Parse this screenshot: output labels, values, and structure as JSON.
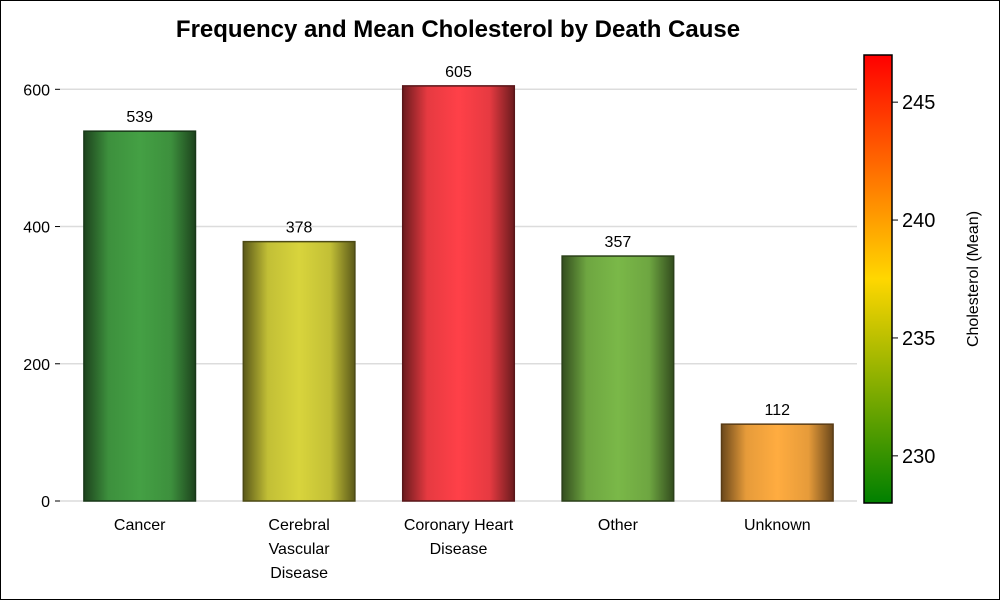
{
  "chart_data": {
    "type": "bar",
    "title": "Frequency and Mean Cholesterol by Death Cause",
    "categories": [
      "Cancer",
      "Cerebral Vascular Disease",
      "Coronary Heart Disease",
      "Other",
      "Unknown"
    ],
    "category_lines": [
      [
        "Cancer"
      ],
      [
        "Cerebral",
        "Vascular",
        "Disease"
      ],
      [
        "Coronary Heart",
        "Disease"
      ],
      [
        "Other"
      ],
      [
        "Unknown"
      ]
    ],
    "values": [
      539,
      378,
      605,
      357,
      112
    ],
    "data_labels": [
      "539",
      "378",
      "605",
      "357",
      "112"
    ],
    "bar_colors": [
      "#44a044",
      "#d8d43c",
      "#ff4048",
      "#7ab848",
      "#ffac40"
    ],
    "ylim": [
      0,
      650
    ],
    "yticks": [
      0,
      200,
      400,
      600
    ],
    "grid": true,
    "colorbar": {
      "label": "Cholesterol (Mean)",
      "range": [
        228,
        247
      ],
      "ticks": [
        230,
        235,
        240,
        245
      ],
      "colors": [
        "#008000",
        "#ffd700",
        "#ff0000"
      ]
    }
  }
}
